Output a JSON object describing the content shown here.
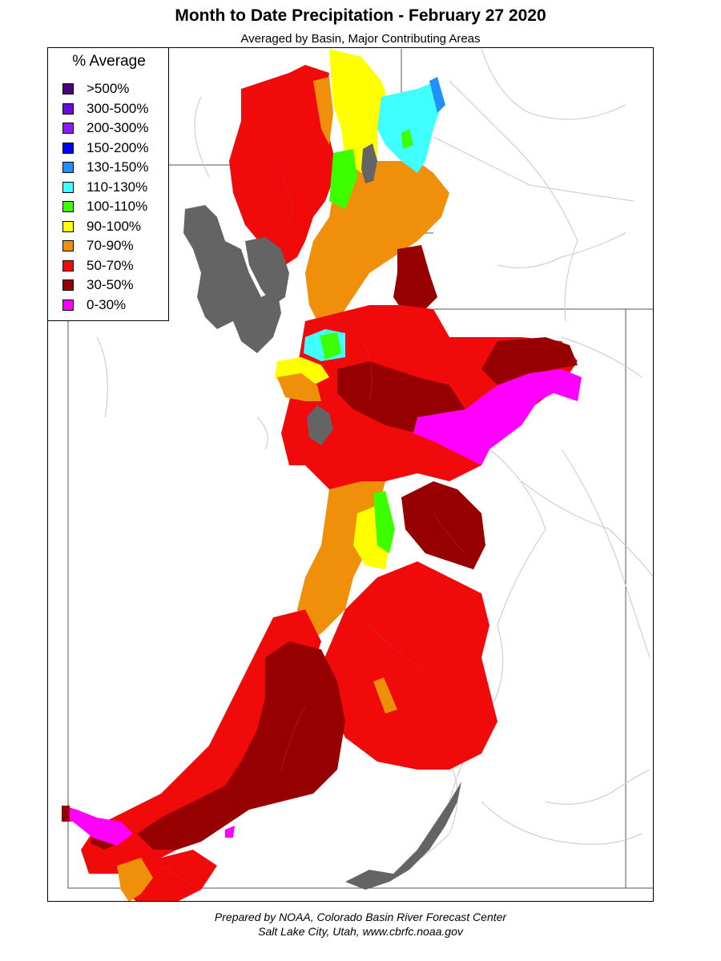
{
  "title": "Month to Date Precipitation - February 27 2020",
  "subtitle": "Averaged by Basin, Major Contributing Areas",
  "legend": {
    "title": "% Average",
    "items": [
      {
        "label": ">500%",
        "color": "#4b0082"
      },
      {
        "label": "300-500%",
        "color": "#6a0dd8"
      },
      {
        "label": "200-300%",
        "color": "#8a1aff"
      },
      {
        "label": "150-200%",
        "color": "#0000ff"
      },
      {
        "label": "130-150%",
        "color": "#1e90ff"
      },
      {
        "label": "110-130%",
        "color": "#40ffff"
      },
      {
        "label": "100-110%",
        "color": "#3cff00"
      },
      {
        "label": "90-100%",
        "color": "#ffff00"
      },
      {
        "label": "70-90%",
        "color": "#f0900a"
      },
      {
        "label": "50-70%",
        "color": "#f00a0a"
      },
      {
        "label": "30-50%",
        "color": "#960000"
      },
      {
        "label": "0-30%",
        "color": "#ff00ff"
      }
    ]
  },
  "map_colors": {
    "lake": "#646464",
    "border": "#7a7a7a",
    "river": "#c8c8c8"
  },
  "footer": {
    "line1": "Prepared by NOAA, Colorado Basin River Forecast Center",
    "line2": "Salt Lake City, Utah, www.cbrfc.noaa.gov"
  }
}
